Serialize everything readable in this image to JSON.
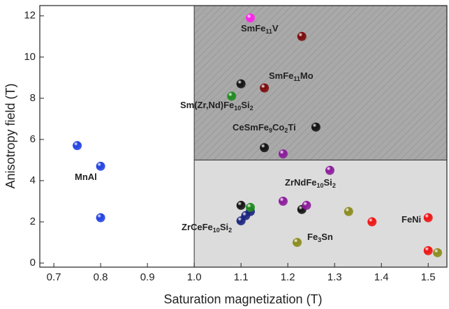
{
  "chart_data": {
    "type": "scatter",
    "xlabel": "Saturation magnetization (T)",
    "ylabel": "Anisotropy field (T)",
    "xlim": [
      0.67,
      1.54
    ],
    "ylim": [
      -0.2,
      12.5
    ],
    "xticks": [
      0.7,
      0.8,
      0.9,
      {
        "value": 1,
        "label": "1.0"
      },
      1.1,
      1.2,
      1.3,
      1.4,
      1.5
    ],
    "yticks": [
      0,
      2,
      4,
      6,
      8,
      10,
      12
    ],
    "regions": [
      {
        "x0": 1.0,
        "y0": 5,
        "color": "#a9a9a9",
        "hatch": true
      },
      {
        "x0": 1.0,
        "y1": 5,
        "color": "#dcdcdc",
        "hatch": false
      }
    ],
    "series": [
      {
        "color": "#1f3fe0",
        "x": [
          0.75,
          0.8,
          0.8
        ],
        "values": [
          5.7,
          4.7,
          2.2
        ]
      },
      {
        "color": "#1a237e",
        "x": [
          1.1,
          1.11,
          1.12
        ],
        "values": [
          2.05,
          2.3,
          2.5
        ]
      },
      {
        "color": "#ff22ee",
        "x": [
          1.12
        ],
        "values": [
          11.9
        ]
      },
      {
        "color": "#7a0a0a",
        "x": [
          1.23,
          1.15
        ],
        "values": [
          11.0,
          8.5
        ]
      },
      {
        "color": "#1e8a1e",
        "x": [
          1.08,
          1.12
        ],
        "values": [
          8.1,
          2.7
        ]
      },
      {
        "color": "#111111",
        "x": [
          1.1,
          1.26,
          1.15,
          1.1,
          1.23
        ],
        "values": [
          8.7,
          6.6,
          5.6,
          2.8,
          2.6
        ]
      },
      {
        "color": "#8a1a9a",
        "x": [
          1.19,
          1.29,
          1.19,
          1.24
        ],
        "values": [
          5.3,
          4.5,
          3.0,
          2.8
        ]
      },
      {
        "color": "#8a8a1a",
        "x": [
          1.33,
          1.22,
          1.52
        ],
        "values": [
          2.5,
          1.0,
          0.5
        ]
      },
      {
        "color": "#ee1111",
        "x": [
          1.38,
          1.5,
          1.5
        ],
        "values": [
          2.0,
          2.2,
          0.6
        ]
      }
    ],
    "annotations": [
      {
        "text": [
          "SmFe",
          "11",
          "V"
        ],
        "color": "#ff22ee"
      },
      {
        "text": [
          "SmFe",
          "11",
          "Mo"
        ],
        "color": "#7a0a0a"
      },
      {
        "text": [
          "Sm(Zr,Nd)Fe",
          "10",
          "Si",
          "2"
        ],
        "color": "#1e8a1e"
      },
      {
        "text": [
          "CeSmFe",
          "9",
          "Co",
          "2",
          "Ti"
        ],
        "color": "#111111"
      },
      {
        "text": [
          "MnAl"
        ],
        "color": "#1f3fe0"
      },
      {
        "text": [
          "ZrNdFe",
          "10",
          "Si",
          "2"
        ],
        "color": "#8a1a9a"
      },
      {
        "text": [
          "ZrCeFe",
          "10",
          "Si",
          "2"
        ],
        "color": "#1a237e"
      },
      {
        "text": [
          "Fe",
          "3",
          "Sn"
        ],
        "color": "#8a8a1a"
      },
      {
        "text": [
          "FeNi"
        ],
        "color": "#ee1111"
      }
    ]
  }
}
